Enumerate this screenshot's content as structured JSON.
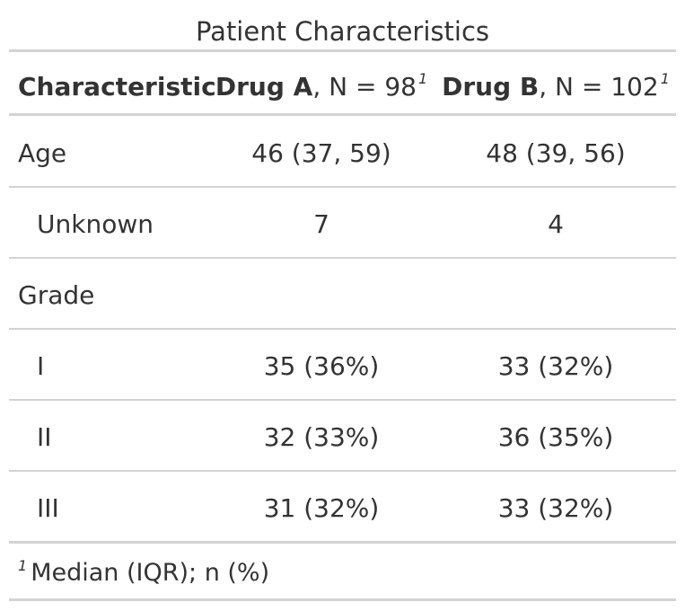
{
  "title": "Patient Characteristics",
  "header": {
    "col1": "Characteristic",
    "col2_bold": "Drug A",
    "col2_rest": ", N = 98",
    "col3_bold": "Drug B",
    "col3_rest": ", N = 102",
    "footnote_mark": "1"
  },
  "rows": [
    {
      "label": "Age",
      "a": "46 (37, 59)",
      "b": "48 (39, 56)"
    },
    {
      "label": "Unknown",
      "a": "7",
      "b": "4"
    },
    {
      "label": "Grade",
      "a": "",
      "b": ""
    },
    {
      "label": "I",
      "a": "35 (36%)",
      "b": "33 (32%)"
    },
    {
      "label": "II",
      "a": "32 (33%)",
      "b": "36 (35%)"
    },
    {
      "label": "III",
      "a": "31 (32%)",
      "b": "33 (32%)"
    }
  ],
  "footnote": {
    "mark": "1",
    "text": "Median (IQR); n (%)"
  }
}
